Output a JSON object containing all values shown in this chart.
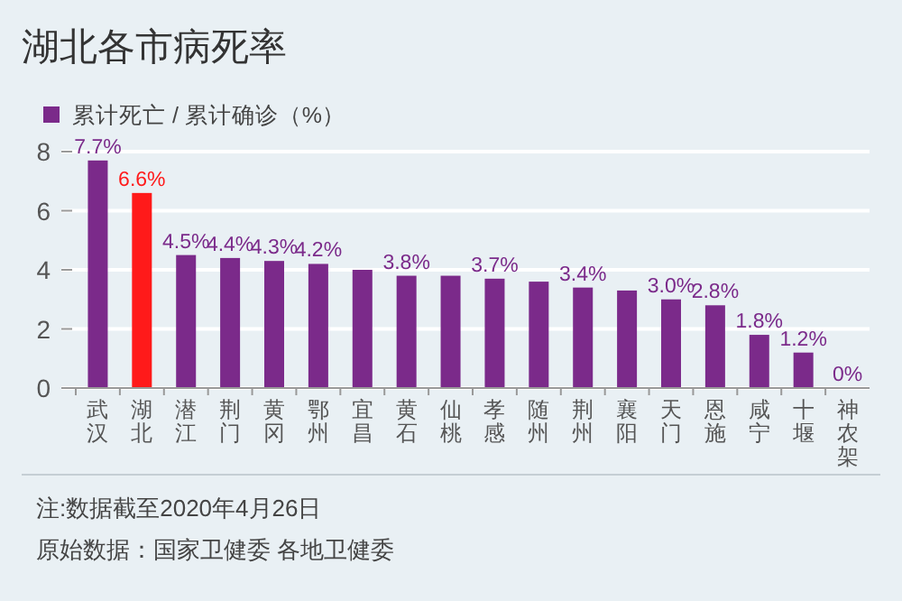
{
  "chart_data": {
    "type": "bar",
    "title": "湖北各市病死率",
    "categories": [
      "武汉",
      "湖北",
      "潜江",
      "荆门",
      "黄冈",
      "鄂州",
      "宜昌",
      "黄石",
      "仙桃",
      "孝感",
      "随州",
      "荆州",
      "襄阳",
      "天门",
      "恩施",
      "咸宁",
      "十堰",
      "神农架"
    ],
    "series": [
      {
        "name": "累计死亡 / 累计确诊（%）",
        "color": "#7b2a8a",
        "colors": [
          "#7b2a8a",
          "#ff1a1a",
          "#7b2a8a",
          "#7b2a8a",
          "#7b2a8a",
          "#7b2a8a",
          "#7b2a8a",
          "#7b2a8a",
          "#7b2a8a",
          "#7b2a8a",
          "#7b2a8a",
          "#7b2a8a",
          "#7b2a8a",
          "#7b2a8a",
          "#7b2a8a",
          "#7b2a8a",
          "#7b2a8a",
          "#7b2a8a"
        ],
        "values": [
          7.7,
          6.6,
          4.5,
          4.4,
          4.3,
          4.2,
          4.0,
          3.8,
          3.8,
          3.7,
          3.6,
          3.4,
          3.3,
          3.0,
          2.8,
          1.8,
          1.2,
          0
        ],
        "value_labels": [
          "7.7%",
          "6.6%",
          "4.5%",
          "4.4%",
          "4.3%",
          "4.2%",
          null,
          "3.8%",
          null,
          "3.7%",
          null,
          "3.4%",
          null,
          "3.0%",
          "2.8%",
          "1.8%",
          "1.2%",
          "0%"
        ]
      }
    ],
    "ylim": [
      0,
      8
    ],
    "yticks": [
      0,
      2,
      4,
      6,
      8
    ],
    "grid": "y",
    "legend": "top left",
    "annotations": [
      "注:数据截至2020年4月26日",
      "原始数据：国家卫健委 各地卫健委"
    ]
  }
}
